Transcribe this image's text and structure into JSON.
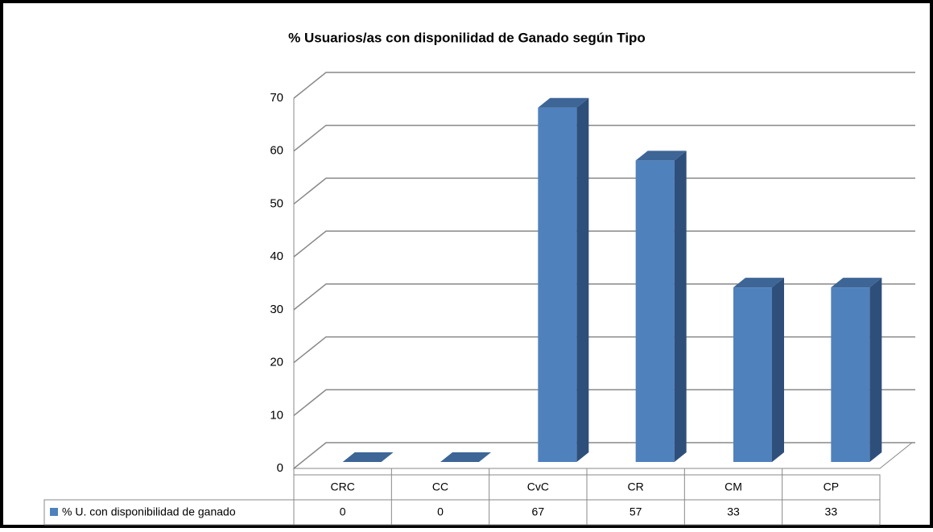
{
  "chart_data": {
    "type": "bar",
    "title": "% Usuarios/as con disponilidad de Ganado según Tipo",
    "categories": [
      "CRC",
      "CC",
      "CvC",
      "CR",
      "CM",
      "CP"
    ],
    "series": [
      {
        "name": "% U. con disponibilidad de ganado",
        "color": "#4f81bd",
        "values": [
          0,
          0,
          67,
          57,
          33,
          33
        ]
      }
    ],
    "ylim": [
      0,
      70
    ],
    "yticks": [
      0,
      10,
      20,
      30,
      40,
      50,
      60,
      70
    ],
    "grid": true
  }
}
